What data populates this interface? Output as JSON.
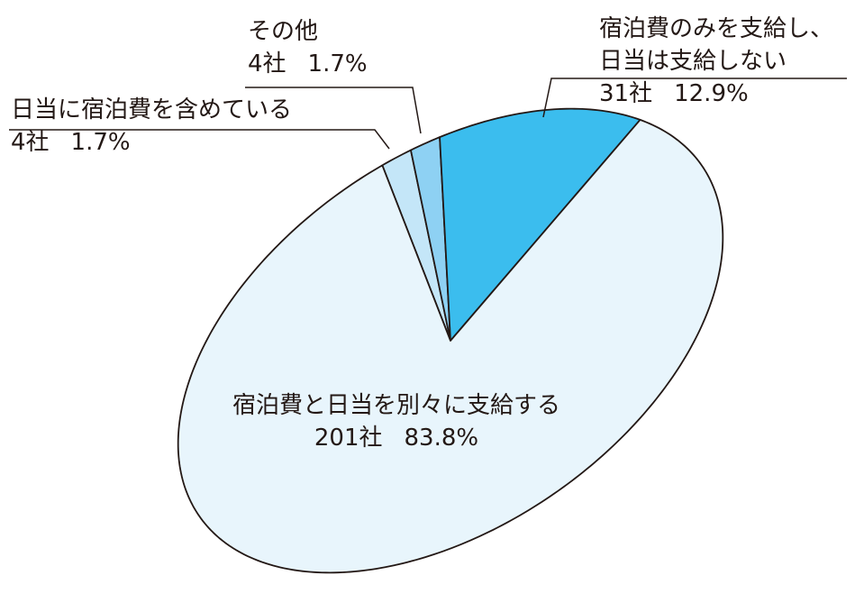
{
  "chart_data": {
    "type": "pie",
    "categories": [
      "日当に宿泊費を含めている",
      "その他",
      "宿泊費のみを支給し、日当は支給しない",
      "宿泊費と日当を別々に支給する"
    ],
    "values": [
      1.7,
      1.7,
      12.9,
      83.8
    ],
    "value_labels": [
      "1.7%",
      "1.7%",
      "12.9%",
      "83.8%"
    ],
    "count_labels": [
      "4社",
      "4社",
      "31社",
      "201社"
    ],
    "colors": [
      "#c4e6f8",
      "#8ed1f3",
      "#3bbdee",
      "#e8f5fc"
    ]
  }
}
